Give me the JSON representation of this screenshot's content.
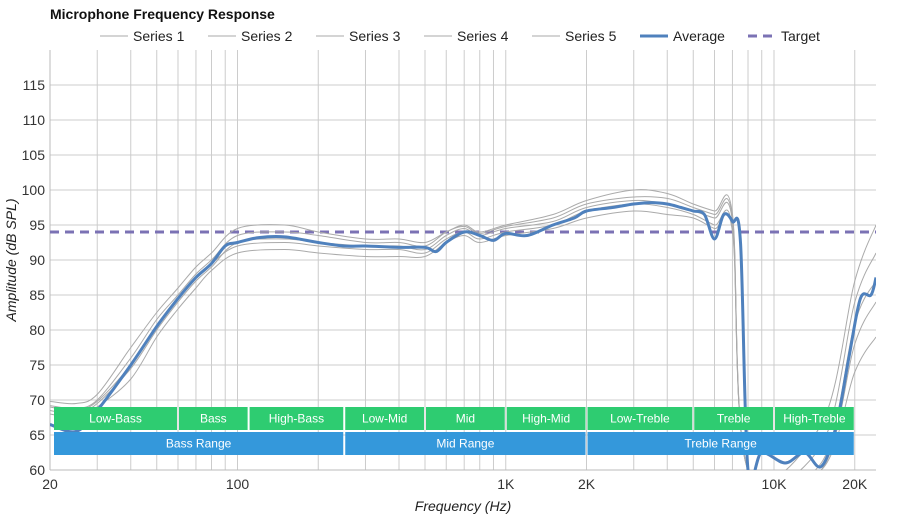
{
  "chart_data": {
    "type": "line",
    "title": "Microphone Frequency Response",
    "xlabel": "Frequency (Hz)",
    "ylabel": "Amplitude (dB SPL)",
    "x_scale": "log",
    "xlim": [
      20,
      24000
    ],
    "ylim": [
      60,
      120
    ],
    "x_ticks": [
      {
        "value": 20,
        "label": "20"
      },
      {
        "value": 100,
        "label": "100"
      },
      {
        "value": 1000,
        "label": "1K"
      },
      {
        "value": 2000,
        "label": "2K"
      },
      {
        "value": 10000,
        "label": "10K"
      },
      {
        "value": 20000,
        "label": "20K"
      }
    ],
    "y_ticks": [
      60,
      65,
      70,
      75,
      80,
      85,
      90,
      95,
      100,
      105,
      110,
      115
    ],
    "grid": true,
    "legend_position": "top",
    "colors": {
      "series": "#aaaaaa",
      "average": "#4f81bd",
      "target": "#7b72b4",
      "band_top": "#2ecc71",
      "band_bottom": "#3498db",
      "grid": "#cccccc"
    },
    "series": [
      {
        "name": "Series 1",
        "points": [
          [
            20,
            69.8
          ],
          [
            25,
            69.5
          ],
          [
            30,
            70.8
          ],
          [
            40,
            77.5
          ],
          [
            50,
            82.5
          ],
          [
            60,
            86.0
          ],
          [
            70,
            89.0
          ],
          [
            80,
            91.0
          ],
          [
            100,
            94.5
          ],
          [
            150,
            95.0
          ],
          [
            200,
            94.0
          ],
          [
            300,
            93.0
          ],
          [
            400,
            93.0
          ],
          [
            500,
            92.5
          ],
          [
            600,
            94.0
          ],
          [
            700,
            95.0
          ],
          [
            800,
            94.0
          ],
          [
            1000,
            95.0
          ],
          [
            1500,
            96.5
          ],
          [
            2000,
            98.5
          ],
          [
            3000,
            100.0
          ],
          [
            4000,
            99.5
          ],
          [
            5000,
            98.0
          ],
          [
            6000,
            97.0
          ],
          [
            7000,
            96.5
          ],
          [
            8000,
            60
          ],
          [
            15000,
            66.5
          ],
          [
            20000,
            87.0
          ],
          [
            24000,
            95.0
          ]
        ]
      },
      {
        "name": "Series 2",
        "points": [
          [
            20,
            69.0
          ],
          [
            25,
            68.5
          ],
          [
            30,
            69.8
          ],
          [
            40,
            75.0
          ],
          [
            50,
            80.5
          ],
          [
            60,
            84.5
          ],
          [
            70,
            87.5
          ],
          [
            80,
            89.5
          ],
          [
            100,
            92.0
          ],
          [
            150,
            92.5
          ],
          [
            200,
            92.0
          ],
          [
            300,
            91.5
          ],
          [
            400,
            91.5
          ],
          [
            500,
            91.0
          ],
          [
            600,
            93.0
          ],
          [
            700,
            94.0
          ],
          [
            800,
            93.0
          ],
          [
            1000,
            94.0
          ],
          [
            1500,
            95.0
          ],
          [
            2000,
            97.0
          ],
          [
            3000,
            98.0
          ],
          [
            4000,
            97.5
          ],
          [
            5000,
            96.5
          ],
          [
            6000,
            95.0
          ],
          [
            7000,
            94.5
          ],
          [
            8000,
            60
          ],
          [
            15000,
            61.0
          ],
          [
            20000,
            81.0
          ],
          [
            24000,
            87.0
          ]
        ]
      },
      {
        "name": "Series 3",
        "points": [
          [
            20,
            68.0
          ],
          [
            25,
            67.5
          ],
          [
            30,
            69.0
          ],
          [
            40,
            73.0
          ],
          [
            50,
            79.0
          ],
          [
            60,
            83.0
          ],
          [
            70,
            86.0
          ],
          [
            80,
            88.5
          ],
          [
            100,
            91.0
          ],
          [
            150,
            91.5
          ],
          [
            200,
            91.0
          ],
          [
            300,
            90.5
          ],
          [
            400,
            90.5
          ],
          [
            500,
            90.5
          ],
          [
            600,
            92.5
          ],
          [
            700,
            93.5
          ],
          [
            800,
            92.5
          ],
          [
            1000,
            93.5
          ],
          [
            1500,
            94.5
          ],
          [
            2000,
            96.0
          ],
          [
            3000,
            97.0
          ],
          [
            4000,
            96.5
          ],
          [
            5000,
            96.0
          ],
          [
            6000,
            94.5
          ],
          [
            7000,
            94.0
          ],
          [
            8000,
            60
          ],
          [
            15000,
            60
          ],
          [
            20000,
            74.0
          ],
          [
            24000,
            79.0
          ]
        ]
      },
      {
        "name": "Series 4",
        "points": [
          [
            20,
            68.5
          ],
          [
            25,
            68.0
          ],
          [
            30,
            69.5
          ],
          [
            40,
            74.5
          ],
          [
            50,
            80.0
          ],
          [
            60,
            84.0
          ],
          [
            70,
            87.0
          ],
          [
            80,
            89.0
          ],
          [
            100,
            92.5
          ],
          [
            150,
            93.0
          ],
          [
            200,
            92.5
          ],
          [
            300,
            92.0
          ],
          [
            400,
            92.0
          ],
          [
            500,
            91.5
          ],
          [
            600,
            93.5
          ],
          [
            700,
            94.5
          ],
          [
            800,
            93.5
          ],
          [
            1000,
            94.5
          ],
          [
            1500,
            95.5
          ],
          [
            2000,
            97.5
          ],
          [
            3000,
            98.5
          ],
          [
            4000,
            98.0
          ],
          [
            5000,
            97.0
          ],
          [
            6000,
            96.0
          ],
          [
            7000,
            95.5
          ],
          [
            8000,
            60
          ],
          [
            15000,
            63.5
          ],
          [
            20000,
            84.0
          ],
          [
            24000,
            91.0
          ]
        ]
      },
      {
        "name": "Series 5",
        "points": [
          [
            20,
            69.2
          ],
          [
            25,
            68.8
          ],
          [
            30,
            70.0
          ],
          [
            40,
            76.0
          ],
          [
            50,
            81.5
          ],
          [
            60,
            85.0
          ],
          [
            70,
            88.0
          ],
          [
            80,
            90.0
          ],
          [
            100,
            93.5
          ],
          [
            150,
            94.0
          ],
          [
            200,
            93.5
          ],
          [
            300,
            92.5
          ],
          [
            400,
            92.5
          ],
          [
            500,
            92.0
          ],
          [
            600,
            94.0
          ],
          [
            700,
            94.8
          ],
          [
            800,
            93.8
          ],
          [
            1000,
            94.8
          ],
          [
            1500,
            96.0
          ],
          [
            2000,
            98.0
          ],
          [
            3000,
            99.0
          ],
          [
            4000,
            98.8
          ],
          [
            5000,
            97.5
          ],
          [
            6000,
            96.5
          ],
          [
            7000,
            96.0
          ],
          [
            8000,
            60
          ],
          [
            15000,
            60
          ],
          [
            20000,
            78.0
          ],
          [
            24000,
            84.0
          ]
        ]
      }
    ],
    "average": {
      "name": "Average",
      "points": [
        [
          20,
          66.5
        ],
        [
          25,
          65.5
        ],
        [
          30,
          68.5
        ],
        [
          40,
          75.0
        ],
        [
          50,
          80.5
        ],
        [
          60,
          84.5
        ],
        [
          70,
          87.5
        ],
        [
          80,
          89.5
        ],
        [
          90,
          92.0
        ],
        [
          100,
          92.5
        ],
        [
          120,
          93.2
        ],
        [
          150,
          93.3
        ],
        [
          200,
          92.5
        ],
        [
          250,
          92.0
        ],
        [
          300,
          92.0
        ],
        [
          400,
          91.8
        ],
        [
          500,
          91.8
        ],
        [
          550,
          91.2
        ],
        [
          600,
          92.5
        ],
        [
          700,
          94.0
        ],
        [
          800,
          93.5
        ],
        [
          900,
          92.8
        ],
        [
          1000,
          93.8
        ],
        [
          1200,
          93.5
        ],
        [
          1500,
          95.0
        ],
        [
          1800,
          96.0
        ],
        [
          2000,
          97.0
        ],
        [
          2500,
          97.5
        ],
        [
          3000,
          98.0
        ],
        [
          3500,
          98.2
        ],
        [
          4000,
          98.0
        ],
        [
          4500,
          97.5
        ],
        [
          5000,
          97.0
        ],
        [
          5500,
          96.5
        ],
        [
          6000,
          93.0
        ],
        [
          6500,
          96.5
        ],
        [
          7000,
          95.5
        ],
        [
          7500,
          92.5
        ],
        [
          8000,
          60
        ],
        [
          9000,
          62.5
        ],
        [
          11000,
          61.0
        ],
        [
          13000,
          62.5
        ],
        [
          15000,
          60.5
        ],
        [
          17000,
          66.0
        ],
        [
          19000,
          76.0
        ],
        [
          21000,
          84.5
        ],
        [
          23000,
          85.0
        ],
        [
          24000,
          87.5
        ]
      ]
    },
    "target": {
      "name": "Target",
      "value": 94
    },
    "bands_top": [
      {
        "label": "Low-Bass",
        "range": [
          20,
          60
        ]
      },
      {
        "label": "Bass",
        "range": [
          60,
          110
        ]
      },
      {
        "label": "High-Bass",
        "range": [
          110,
          250
        ]
      },
      {
        "label": "Low-Mid",
        "range": [
          250,
          500
        ]
      },
      {
        "label": "Mid",
        "range": [
          500,
          1000
        ]
      },
      {
        "label": "High-Mid",
        "range": [
          1000,
          2000
        ]
      },
      {
        "label": "Low-Treble",
        "range": [
          2000,
          5000
        ]
      },
      {
        "label": "Treble",
        "range": [
          5000,
          10000
        ]
      },
      {
        "label": "High-Treble",
        "range": [
          10000,
          20000
        ]
      }
    ],
    "bands_bottom": [
      {
        "label": "Bass Range",
        "range": [
          20,
          250
        ]
      },
      {
        "label": "Mid Range",
        "range": [
          250,
          2000
        ]
      },
      {
        "label": "Treble Range",
        "range": [
          2000,
          20000
        ]
      }
    ]
  }
}
